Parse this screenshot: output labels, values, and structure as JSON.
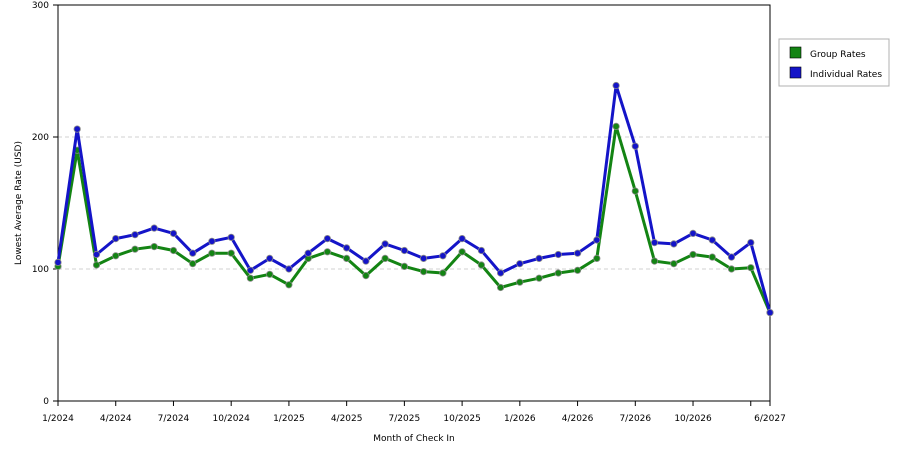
{
  "chart_data": {
    "type": "line",
    "xlabel": "Month of Check In",
    "ylabel": "Lowest Average Rate (USD)",
    "ylim": [
      0,
      300
    ],
    "y_ticks": [
      0,
      100,
      200,
      300
    ],
    "x_tick_labels": [
      "1/2024",
      "4/2024",
      "7/2024",
      "10/2024",
      "1/2025",
      "4/2025",
      "7/2025",
      "10/2025",
      "1/2026",
      "4/2026",
      "7/2026",
      "10/2026",
      "6/2027"
    ],
    "x_tick_indices": [
      0,
      3,
      6,
      9,
      12,
      15,
      18,
      21,
      24,
      27,
      30,
      33,
      37
    ],
    "x_minor_tick_indices": [
      36
    ],
    "grid": "horizontal dashed",
    "legend_position": "right",
    "x": [
      "1/2024",
      "2/2024",
      "3/2024",
      "4/2024",
      "5/2024",
      "6/2024",
      "7/2024",
      "8/2024",
      "9/2024",
      "10/2024",
      "11/2024",
      "12/2024",
      "1/2025",
      "2/2025",
      "3/2025",
      "4/2025",
      "5/2025",
      "6/2025",
      "7/2025",
      "8/2025",
      "9/2025",
      "10/2025",
      "11/2025",
      "12/2025",
      "1/2026",
      "2/2026",
      "3/2026",
      "4/2026",
      "5/2026",
      "6/2026",
      "7/2026",
      "8/2026",
      "9/2026",
      "10/2026",
      "11/2026",
      "12/2026",
      "1/2027",
      "6/2027"
    ],
    "series": [
      {
        "name": "Group Rates",
        "color": "#138413",
        "values": [
          102,
          190,
          103,
          110,
          115,
          117,
          114,
          104,
          112,
          112,
          93,
          96,
          88,
          108,
          113,
          108,
          95,
          108,
          102,
          98,
          97,
          113,
          103,
          86,
          90,
          93,
          97,
          99,
          108,
          208,
          159,
          106,
          104,
          111,
          109,
          100,
          101,
          67
        ]
      },
      {
        "name": "Individual Rates",
        "color": "#1414c8",
        "values": [
          105,
          206,
          111,
          123,
          126,
          131,
          127,
          112,
          121,
          124,
          99,
          108,
          100,
          112,
          123,
          116,
          106,
          119,
          114,
          108,
          110,
          123,
          114,
          97,
          104,
          108,
          111,
          112,
          122,
          239,
          193,
          120,
          119,
          127,
          122,
          109,
          120,
          67
        ]
      }
    ]
  }
}
